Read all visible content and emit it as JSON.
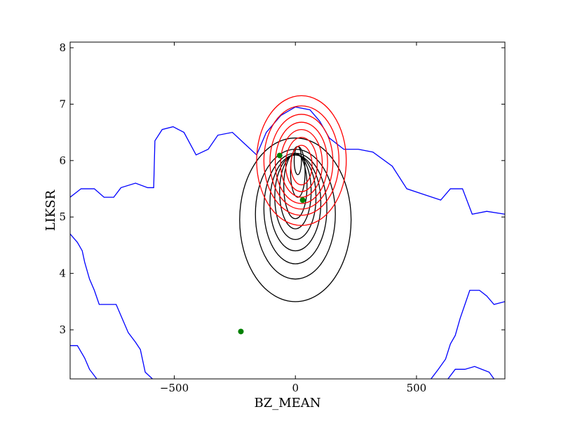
{
  "chart_data": {
    "type": "scatter",
    "title": "",
    "xlabel": "BZ_MEAN",
    "ylabel": "LIKSR",
    "xlim": [
      -930,
      865
    ],
    "ylim": [
      2.13,
      8.1
    ],
    "x_ticks": [
      -500,
      0,
      500
    ],
    "x_tick_labels": [
      "−500",
      "0",
      "500"
    ],
    "y_ticks": [
      3,
      4,
      5,
      6,
      7,
      8
    ],
    "y_tick_labels": [
      "3",
      "4",
      "5",
      "6",
      "7",
      "8"
    ],
    "grid": false,
    "colors": {
      "blue": "#0000ff",
      "red": "#ff0000",
      "black": "#000000",
      "green": "#008000"
    },
    "points": [
      {
        "x": -65,
        "y": 6.09
      },
      {
        "x": 30,
        "y": 5.3
      },
      {
        "x": -225,
        "y": 2.97
      }
    ],
    "black_contours": [
      {
        "cx": 0,
        "cy": 4.95,
        "rx": 230,
        "ry": 1.45
      },
      {
        "cx": 0,
        "cy": 5.05,
        "rx": 165,
        "ry": 1.15
      },
      {
        "cx": 0,
        "cy": 5.15,
        "rx": 130,
        "ry": 0.98
      },
      {
        "cx": 0,
        "cy": 5.25,
        "rx": 105,
        "ry": 0.85
      },
      {
        "cx": 0,
        "cy": 5.35,
        "rx": 85,
        "ry": 0.75
      },
      {
        "cx": 0,
        "cy": 5.45,
        "rx": 65,
        "ry": 0.66
      },
      {
        "cx": 0,
        "cy": 5.55,
        "rx": 48,
        "ry": 0.58
      },
      {
        "cx": 10,
        "cy": 5.8,
        "rx": 30,
        "ry": 0.45
      },
      {
        "cx": 10,
        "cy": 6.0,
        "rx": 15,
        "ry": 0.25
      }
    ],
    "red_contours": [
      {
        "cx": 25,
        "cy": 6.0,
        "rx": 185,
        "ry": 1.15
      },
      {
        "cx": 25,
        "cy": 6.0,
        "rx": 155,
        "ry": 0.97
      },
      {
        "cx": 25,
        "cy": 5.98,
        "rx": 130,
        "ry": 0.84
      },
      {
        "cx": 25,
        "cy": 5.96,
        "rx": 108,
        "ry": 0.72
      },
      {
        "cx": 25,
        "cy": 5.95,
        "rx": 86,
        "ry": 0.6
      },
      {
        "cx": 25,
        "cy": 5.93,
        "rx": 65,
        "ry": 0.48
      },
      {
        "cx": 25,
        "cy": 5.92,
        "rx": 44,
        "ry": 0.35
      }
    ],
    "blue_contours": [
      [
        [
          -930,
          5.35
        ],
        [
          -885,
          5.5
        ],
        [
          -830,
          5.5
        ],
        [
          -790,
          5.35
        ],
        [
          -750,
          5.35
        ],
        [
          -720,
          5.52
        ],
        [
          -660,
          5.6
        ],
        [
          -610,
          5.52
        ],
        [
          -585,
          5.52
        ],
        [
          -580,
          6.35
        ],
        [
          -550,
          6.55
        ],
        [
          -505,
          6.6
        ],
        [
          -460,
          6.5
        ],
        [
          -410,
          6.1
        ],
        [
          -360,
          6.2
        ],
        [
          -320,
          6.45
        ],
        [
          -260,
          6.5
        ],
        [
          -210,
          6.3
        ],
        [
          -160,
          6.1
        ],
        [
          -120,
          6.5
        ],
        [
          -60,
          6.8
        ],
        [
          0,
          6.95
        ],
        [
          60,
          6.9
        ],
        [
          100,
          6.7
        ],
        [
          140,
          6.4
        ],
        [
          200,
          6.2
        ],
        [
          260,
          6.2
        ],
        [
          320,
          6.15
        ],
        [
          400,
          5.9
        ],
        [
          460,
          5.5
        ],
        [
          530,
          5.4
        ],
        [
          600,
          5.3
        ],
        [
          640,
          5.5
        ],
        [
          690,
          5.5
        ],
        [
          730,
          5.05
        ],
        [
          790,
          5.1
        ],
        [
          865,
          5.05
        ]
      ],
      [
        [
          -930,
          4.7
        ],
        [
          -900,
          4.55
        ],
        [
          -880,
          4.4
        ],
        [
          -870,
          4.2
        ],
        [
          -850,
          3.9
        ],
        [
          -830,
          3.7
        ],
        [
          -810,
          3.45
        ],
        [
          -780,
          3.45
        ],
        [
          -740,
          3.45
        ],
        [
          -720,
          3.25
        ],
        [
          -690,
          2.95
        ],
        [
          -660,
          2.78
        ],
        [
          -640,
          2.65
        ],
        [
          -620,
          2.25
        ],
        [
          -590,
          2.13
        ]
      ],
      [
        [
          -930,
          2.72
        ],
        [
          -900,
          2.72
        ],
        [
          -870,
          2.5
        ],
        [
          -850,
          2.3
        ],
        [
          -820,
          2.13
        ]
      ],
      [
        [
          560,
          2.13
        ],
        [
          590,
          2.3
        ],
        [
          620,
          2.48
        ],
        [
          640,
          2.75
        ],
        [
          660,
          2.9
        ],
        [
          680,
          3.2
        ],
        [
          700,
          3.45
        ],
        [
          720,
          3.7
        ],
        [
          760,
          3.7
        ],
        [
          790,
          3.6
        ],
        [
          820,
          3.45
        ],
        [
          865,
          3.5
        ]
      ],
      [
        [
          630,
          2.13
        ],
        [
          660,
          2.3
        ],
        [
          700,
          2.3
        ],
        [
          740,
          2.35
        ],
        [
          770,
          2.3
        ],
        [
          800,
          2.25
        ],
        [
          820,
          2.13
        ]
      ]
    ]
  }
}
